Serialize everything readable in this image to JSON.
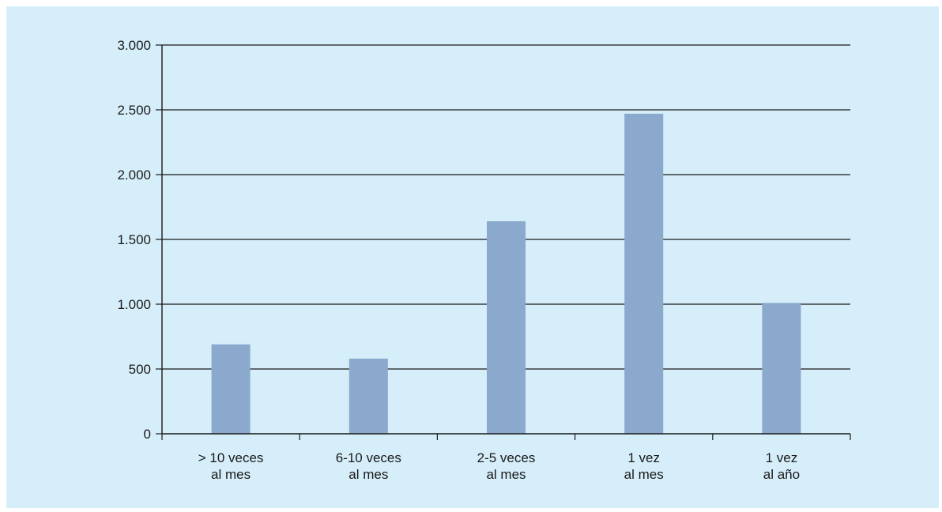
{
  "chart_data": {
    "type": "bar",
    "categories": [
      [
        "> 10 veces",
        "al mes"
      ],
      [
        "6-10 veces",
        "al mes"
      ],
      [
        "2-5 veces",
        "al mes"
      ],
      [
        "1 vez",
        "al mes"
      ],
      [
        "1 vez",
        "al año"
      ]
    ],
    "values": [
      690,
      580,
      1640,
      2470,
      1010
    ],
    "ylim": [
      0,
      3000
    ],
    "yticks": [
      0,
      500,
      1000,
      1500,
      2000,
      2500,
      3000
    ],
    "ytick_labels": [
      "0",
      "500",
      "1.000",
      "1.500",
      "2.000",
      "2.500",
      "3.000"
    ],
    "title": "",
    "xlabel": "",
    "ylabel": "",
    "grid": "horizontal",
    "colors": {
      "background": "#d5eef9",
      "bar": "#8ba9cc",
      "axis": "#1a1a1a",
      "text": "#1a1a1a"
    }
  }
}
